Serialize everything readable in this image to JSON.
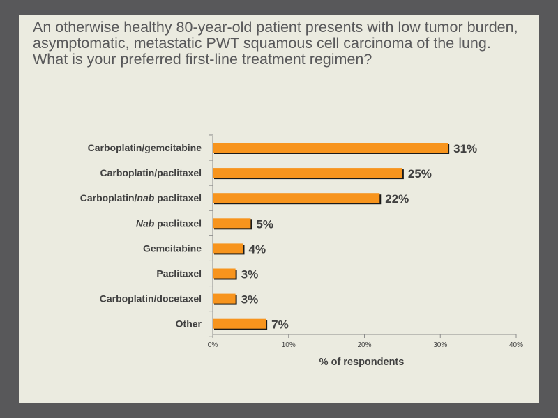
{
  "question": "An otherwise healthy 80-year-old patient presents with low tumor burden, asymptomatic, metastatic PWT squamous cell carcinoma of the lung. What is your preferred first-line treatment regimen?",
  "colors": {
    "background": "#58585a",
    "slide": "#ebebe0",
    "bar": "#f7941d",
    "bar_shadow": "#1a1a1a",
    "text": "#404040"
  },
  "chart_data": {
    "type": "bar",
    "orientation": "horizontal",
    "categories": [
      {
        "parts": [
          {
            "text": "Carboplatin/gemcitabine",
            "italic": false
          }
        ]
      },
      {
        "parts": [
          {
            "text": "Carboplatin/paclitaxel",
            "italic": false
          }
        ]
      },
      {
        "parts": [
          {
            "text": "Carboplatin/",
            "italic": false
          },
          {
            "text": "nab",
            "italic": true
          },
          {
            "text": " paclitaxel",
            "italic": false
          }
        ]
      },
      {
        "parts": [
          {
            "text": "Nab",
            "italic": true
          },
          {
            "text": " paclitaxel",
            "italic": false
          }
        ]
      },
      {
        "parts": [
          {
            "text": "Gemcitabine",
            "italic": false
          }
        ]
      },
      {
        "parts": [
          {
            "text": "Paclitaxel",
            "italic": false
          }
        ]
      },
      {
        "parts": [
          {
            "text": "Carboplatin/docetaxel",
            "italic": false
          }
        ]
      },
      {
        "parts": [
          {
            "text": "Other",
            "italic": false
          }
        ]
      }
    ],
    "values": [
      31,
      25,
      22,
      5,
      4,
      3,
      3,
      7
    ],
    "value_labels": [
      "31%",
      "25%",
      "22%",
      "5%",
      "4%",
      "3%",
      "3%",
      "7%"
    ],
    "xlim": [
      0,
      40
    ],
    "xticks": [
      {
        "value": 0,
        "label": "0%"
      },
      {
        "value": 10,
        "label": "10%"
      },
      {
        "value": 20,
        "label": "20%"
      },
      {
        "value": 30,
        "label": "30%"
      },
      {
        "value": 40,
        "label": "40%"
      }
    ],
    "xlabel": "% of respondents",
    "ylabel": "",
    "title": "",
    "grid": false,
    "legend": "none"
  }
}
